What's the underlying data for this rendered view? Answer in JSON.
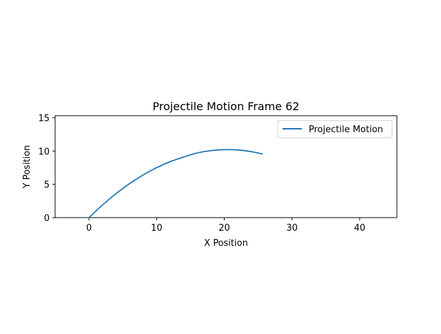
{
  "chart_data": {
    "type": "line",
    "title": "Projectile Motion Frame 62",
    "xlabel": "X Position",
    "ylabel": "Y Position",
    "xlim": [
      -5,
      45.5
    ],
    "ylim": [
      0,
      15.3
    ],
    "xticks": [
      0,
      10,
      20,
      30,
      40
    ],
    "yticks": [
      0,
      5,
      10,
      15
    ],
    "xtick_labels": [
      "0",
      "10",
      "20",
      "30",
      "40"
    ],
    "ytick_labels": [
      "0",
      "5",
      "10",
      "15"
    ],
    "grid": false,
    "legend_position": "upper-right",
    "series": [
      {
        "name": "Projectile Motion",
        "color": "#1f77b4",
        "x": [
          0,
          2,
          4,
          6,
          8,
          10,
          12,
          14,
          16,
          18,
          20,
          22,
          24,
          25.6
        ],
        "y": [
          0,
          1.9,
          3.6,
          5.1,
          6.4,
          7.5,
          8.4,
          9.1,
          9.7,
          10.05,
          10.2,
          10.15,
          9.9,
          9.55
        ]
      }
    ]
  }
}
